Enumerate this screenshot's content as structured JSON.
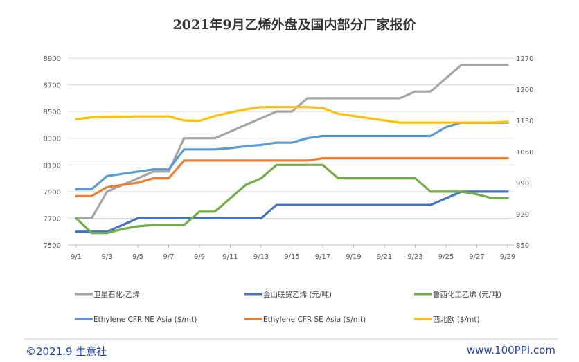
{
  "chart_data": {
    "type": "line",
    "title": "2021年9月乙烯外盘及国内部分厂家报价",
    "x": [
      "9/1",
      "9/2",
      "9/3",
      "9/4",
      "9/5",
      "9/6",
      "9/7",
      "9/8",
      "9/9",
      "9/10",
      "9/11",
      "9/12",
      "9/13",
      "9/14",
      "9/15",
      "9/16",
      "9/17",
      "9/18",
      "9/19",
      "9/20",
      "9/21",
      "9/22",
      "9/23",
      "9/24",
      "9/25",
      "9/26",
      "9/27",
      "9/28",
      "9/29"
    ],
    "x_tick_labels": [
      "9/1",
      "9/3",
      "9/5",
      "9/7",
      "9/9",
      "9/11",
      "9/13",
      "9/15",
      "9/17",
      "9/19",
      "9/21",
      "9/23",
      "9/25",
      "9/27",
      "9/29"
    ],
    "y_left": {
      "ylim": [
        7500,
        8900
      ],
      "ticks": [
        "7500",
        "7700",
        "7900",
        "8100",
        "8300",
        "8500",
        "8700",
        "8900"
      ]
    },
    "y_right": {
      "ylim": [
        850,
        1270
      ],
      "ticks": [
        "850",
        "920",
        "990",
        "1060",
        "1130",
        "1200",
        "1270"
      ]
    },
    "grid": "horizontal",
    "legend_position": "bottom",
    "series": [
      {
        "name": "卫星石化-乙烯",
        "color": "#a5a5a5",
        "axis": "left",
        "values": [
          7700,
          7700,
          7900,
          7950,
          8000,
          8050,
          8050,
          8300,
          8300,
          8300,
          8350,
          8400,
          8450,
          8500,
          8500,
          8600,
          8600,
          8600,
          8600,
          8600,
          8600,
          8600,
          8650,
          8650,
          8750,
          8850,
          8850,
          8850,
          8850
        ]
      },
      {
        "name": "金山联贸乙烯 (元/吨)",
        "color": "#4472c4",
        "axis": "left",
        "values": [
          7600,
          7600,
          7600,
          7650,
          7700,
          7700,
          7700,
          7700,
          7700,
          7700,
          7700,
          7700,
          7700,
          7800,
          7800,
          7800,
          7800,
          7800,
          7800,
          7800,
          7800,
          7800,
          7800,
          7800,
          7850,
          7900,
          7900,
          7900,
          7900
        ]
      },
      {
        "name": "鲁西化工乙烯 (元/吨)",
        "color": "#70ad47",
        "axis": "left",
        "values": [
          7700,
          7590,
          7590,
          7620,
          7640,
          7650,
          7650,
          7650,
          7750,
          7750,
          7850,
          7950,
          8000,
          8100,
          8100,
          8100,
          8100,
          8000,
          8000,
          8000,
          8000,
          8000,
          8000,
          7900,
          7900,
          7900,
          7880,
          7850,
          7850
        ]
      },
      {
        "name": "Ethylene CFR NE Asia ($/mt)",
        "color": "#5b9bd5",
        "axis": "right",
        "values": [
          975,
          975,
          1005,
          1010,
          1015,
          1020,
          1020,
          1065,
          1065,
          1065,
          1068,
          1072,
          1075,
          1080,
          1080,
          1090,
          1095,
          1095,
          1095,
          1095,
          1095,
          1095,
          1095,
          1095,
          1115,
          1125,
          1125,
          1125,
          1125
        ]
      },
      {
        "name": "Ethylene CFR SE Asia ($/mt)",
        "color": "#ed7d31",
        "axis": "right",
        "values": [
          960,
          960,
          980,
          985,
          990,
          1000,
          1000,
          1040,
          1040,
          1040,
          1040,
          1040,
          1040,
          1040,
          1040,
          1040,
          1045,
          1045,
          1045,
          1045,
          1045,
          1045,
          1045,
          1045,
          1045,
          1045,
          1045,
          1045,
          1045
        ]
      },
      {
        "name": "西北欧 ($/mt)",
        "color": "#ffc000",
        "axis": "right",
        "values": [
          1133,
          1137,
          1138,
          1138,
          1139,
          1139,
          1139,
          1130,
          1129,
          1140,
          1148,
          1155,
          1160,
          1160,
          1160,
          1160,
          1158,
          1145,
          1140,
          1135,
          1130,
          1125,
          1125,
          1125,
          1125,
          1125,
          1125,
          1125,
          1127
        ]
      }
    ]
  },
  "footer": {
    "copyright": "©2021.9  生意社",
    "site": "www.100PPI.com"
  }
}
